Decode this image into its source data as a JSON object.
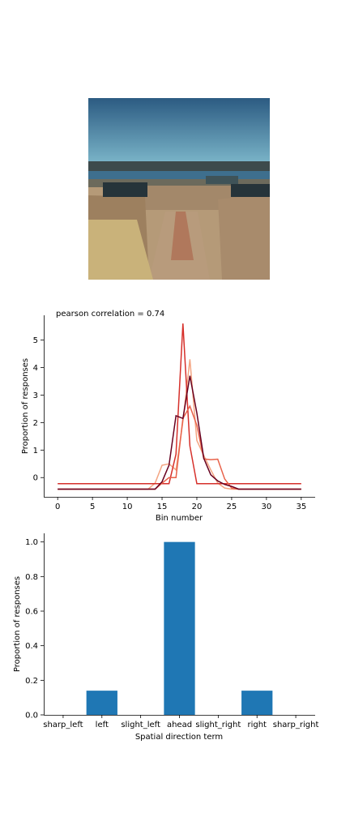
{
  "image": {
    "colors": {
      "sky_top": "#2c5b82",
      "sky_bottom": "#7ab4c8",
      "water": "#3e6f8e",
      "stone": "#b59a78",
      "grass": "#c9b27a",
      "path": "#b0785c"
    }
  },
  "chart_data": [
    {
      "type": "line",
      "title": "pearson correlation = 0.74",
      "xlabel": "Bin number",
      "ylabel": "Proportion of responses",
      "xlim": [
        -2,
        37
      ],
      "ylim": [
        -0.7,
        5.9
      ],
      "xticks": [
        "0",
        "5",
        "10",
        "15",
        "20",
        "25",
        "30",
        "35"
      ],
      "yticks": [
        "0",
        "1",
        "2",
        "3",
        "4",
        "5"
      ],
      "grid": false,
      "legend": "none",
      "x": [
        0,
        1,
        2,
        3,
        4,
        5,
        6,
        7,
        8,
        9,
        10,
        11,
        12,
        13,
        14,
        15,
        16,
        17,
        18,
        19,
        20,
        21,
        22,
        23,
        24,
        25,
        26,
        27,
        28,
        29,
        30,
        31,
        32,
        33,
        34,
        35
      ],
      "series": [
        {
          "color": "#f4a582",
          "values": [
            -0.42,
            -0.42,
            -0.42,
            -0.42,
            -0.42,
            -0.42,
            -0.42,
            -0.42,
            -0.42,
            -0.42,
            -0.42,
            -0.42,
            -0.42,
            -0.42,
            -0.2,
            0.45,
            0.5,
            0.28,
            2.05,
            4.3,
            1.35,
            0.8,
            0.28,
            -0.2,
            -0.38,
            -0.42,
            -0.42,
            -0.42,
            -0.42,
            -0.42,
            -0.42,
            -0.42,
            -0.42,
            -0.42,
            -0.42,
            -0.42
          ]
        },
        {
          "color": "#d6302b",
          "values": [
            -0.22,
            -0.22,
            -0.22,
            -0.22,
            -0.22,
            -0.22,
            -0.22,
            -0.22,
            -0.22,
            -0.22,
            -0.22,
            -0.22,
            -0.22,
            -0.22,
            -0.22,
            -0.22,
            -0.22,
            0.85,
            5.6,
            1.15,
            -0.22,
            -0.22,
            -0.22,
            -0.22,
            -0.22,
            -0.22,
            -0.22,
            -0.22,
            -0.22,
            -0.22,
            -0.22,
            -0.22,
            -0.22,
            -0.22,
            -0.22,
            -0.22
          ]
        },
        {
          "color": "#e8624a",
          "values": [
            -0.42,
            -0.42,
            -0.42,
            -0.42,
            -0.42,
            -0.42,
            -0.42,
            -0.42,
            -0.42,
            -0.42,
            -0.42,
            -0.42,
            -0.42,
            -0.42,
            -0.42,
            -0.2,
            0.0,
            0.0,
            2.15,
            2.6,
            1.9,
            0.68,
            0.65,
            0.67,
            -0.05,
            -0.38,
            -0.42,
            -0.42,
            -0.42,
            -0.42,
            -0.42,
            -0.42,
            -0.42,
            -0.42,
            -0.42,
            -0.42
          ]
        },
        {
          "color": "#67001f",
          "values": [
            -0.42,
            -0.42,
            -0.42,
            -0.42,
            -0.42,
            -0.42,
            -0.42,
            -0.42,
            -0.42,
            -0.42,
            -0.42,
            -0.42,
            -0.42,
            -0.42,
            -0.42,
            -0.15,
            0.45,
            2.25,
            2.15,
            3.7,
            2.35,
            0.7,
            0.1,
            -0.12,
            -0.25,
            -0.32,
            -0.42,
            -0.42,
            -0.42,
            -0.42,
            -0.42,
            -0.42,
            -0.42,
            -0.42,
            -0.42,
            -0.42
          ]
        }
      ]
    },
    {
      "type": "bar",
      "xlabel": "Spatial direction term",
      "ylabel": "Proportion of responses",
      "ylim": [
        0,
        1.05
      ],
      "yticks": [
        "0.0",
        "0.2",
        "0.4",
        "0.6",
        "0.8",
        "1.0"
      ],
      "grid": false,
      "legend": "none",
      "color": "#1f77b4",
      "categories": [
        "sharp_left",
        "left",
        "slight_left",
        "ahead",
        "slight_right",
        "right",
        "sharp_right"
      ],
      "values": [
        0,
        0.14,
        0,
        1.0,
        0,
        0.14,
        0
      ]
    }
  ]
}
